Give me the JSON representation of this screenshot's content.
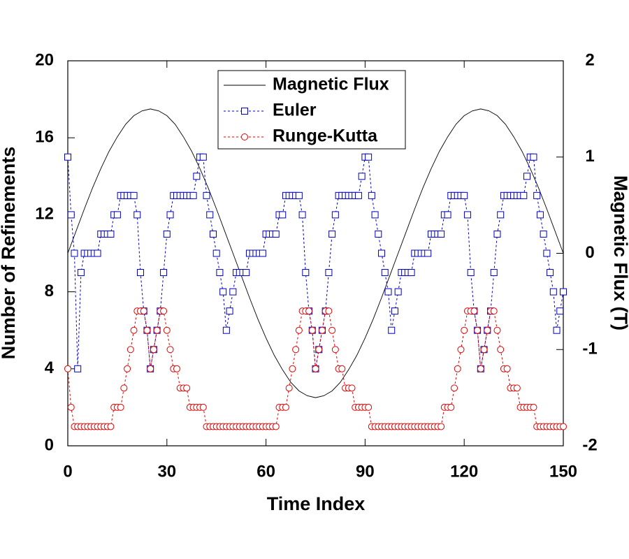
{
  "chart_data": {
    "type": "line",
    "xlabel": "Time Index",
    "ylabel": "Number of Refinements",
    "y2label": "Magnetic Flux (T)",
    "xlim": [
      0,
      150
    ],
    "xticks": [
      0,
      30,
      60,
      90,
      120,
      150
    ],
    "ylim": [
      0,
      20
    ],
    "yticks": [
      0,
      4,
      8,
      12,
      16,
      20
    ],
    "y2lim": [
      -2,
      2
    ],
    "y2ticks": [
      -2,
      -1,
      0,
      1,
      2
    ],
    "legend": "upper center",
    "grid": false,
    "x": [
      0,
      1,
      2,
      3,
      4,
      5,
      6,
      7,
      8,
      9,
      10,
      11,
      12,
      13,
      14,
      15,
      16,
      17,
      18,
      19,
      20,
      21,
      22,
      23,
      24,
      25,
      26,
      27,
      28,
      29,
      30,
      31,
      32,
      33,
      34,
      35,
      36,
      37,
      38,
      39,
      40,
      41,
      42,
      43,
      44,
      45,
      46,
      47,
      48,
      49,
      50,
      51,
      52,
      53,
      54,
      55,
      56,
      57,
      58,
      59,
      60,
      61,
      62,
      63,
      64,
      65,
      66,
      67,
      68,
      69,
      70,
      71,
      72,
      73,
      74,
      75,
      76,
      77,
      78,
      79,
      80,
      81,
      82,
      83,
      84,
      85,
      86,
      87,
      88,
      89,
      90,
      91,
      92,
      93,
      94,
      95,
      96,
      97,
      98,
      99,
      100,
      101,
      102,
      103,
      104,
      105,
      106,
      107,
      108,
      109,
      110,
      111,
      112,
      113,
      114,
      115,
      116,
      117,
      118,
      119,
      120,
      121,
      122,
      123,
      124,
      125,
      126,
      127,
      128,
      129,
      130,
      131,
      132,
      133,
      134,
      135,
      136,
      137,
      138,
      139,
      140,
      141,
      142,
      143,
      144,
      145,
      146,
      147,
      148,
      149,
      150
    ],
    "series": [
      {
        "name": "Magnetic Flux",
        "color": "#000000",
        "axis": "y2",
        "marker": "none",
        "linestyle": "solid",
        "x": [
          0,
          2.5,
          5,
          7.5,
          10,
          12.5,
          15,
          17.5,
          20,
          22.5,
          25,
          27.5,
          30,
          32.5,
          35,
          37.5,
          40,
          42.5,
          45,
          47.5,
          50,
          52.5,
          55,
          57.5,
          60,
          62.5,
          65,
          67.5,
          70,
          72.5,
          75,
          77.5,
          80,
          82.5,
          85,
          87.5,
          90,
          92.5,
          95,
          97.5,
          100,
          102.5,
          105,
          107.5,
          110,
          112.5,
          115,
          117.5,
          120,
          122.5,
          125,
          127.5,
          130,
          132.5,
          135,
          137.5,
          140,
          142.5,
          145,
          147.5,
          150
        ],
        "values": [
          0,
          0.23,
          0.46,
          0.68,
          0.88,
          1.06,
          1.21,
          1.34,
          1.43,
          1.48,
          1.5,
          1.48,
          1.43,
          1.34,
          1.21,
          1.06,
          0.88,
          0.68,
          0.46,
          0.23,
          0,
          -0.23,
          -0.46,
          -0.68,
          -0.88,
          -1.06,
          -1.21,
          -1.34,
          -1.43,
          -1.48,
          -1.5,
          -1.48,
          -1.43,
          -1.34,
          -1.21,
          -1.06,
          -0.88,
          -0.68,
          -0.46,
          -0.23,
          0,
          0.23,
          0.46,
          0.68,
          0.88,
          1.06,
          1.21,
          1.34,
          1.43,
          1.48,
          1.5,
          1.48,
          1.43,
          1.34,
          1.21,
          1.06,
          0.88,
          0.68,
          0.46,
          0.23,
          0
        ]
      },
      {
        "name": "Euler",
        "color": "#0000c0",
        "marker": "square",
        "linestyle": "dotted",
        "values": [
          15,
          12,
          10,
          4,
          9,
          10,
          10,
          10,
          10,
          10,
          11,
          11,
          11,
          11,
          12,
          12,
          13,
          13,
          13,
          13,
          13,
          12,
          9,
          7,
          6,
          4,
          5,
          6,
          7,
          9,
          11,
          12,
          13,
          13,
          13,
          13,
          13,
          13,
          13,
          14,
          15,
          15,
          13,
          12,
          11,
          10,
          9,
          8,
          6,
          7,
          8,
          9,
          9,
          9,
          9,
          10,
          10,
          10,
          10,
          10,
          11,
          11,
          11,
          11,
          12,
          12,
          13,
          13,
          13,
          13,
          13,
          12,
          9,
          7,
          6,
          4,
          5,
          6,
          7,
          9,
          11,
          12,
          13,
          13,
          13,
          13,
          13,
          13,
          13,
          14,
          15,
          15,
          13,
          12,
          11,
          10,
          9,
          8,
          6,
          7,
          8,
          9,
          9,
          9,
          9,
          10,
          10,
          10,
          10,
          10,
          11,
          11,
          11,
          11,
          12,
          12,
          13,
          13,
          13,
          13,
          13,
          12,
          9,
          7,
          6,
          4,
          5,
          6,
          7,
          9,
          11,
          12,
          13,
          13,
          13,
          13,
          13,
          13,
          13,
          14,
          15,
          15,
          13,
          12,
          11,
          10,
          9,
          8,
          6,
          7,
          8
        ]
      },
      {
        "name": "Runge-Kutta",
        "color": "#e00000",
        "marker": "circle",
        "linestyle": "dotted",
        "values": [
          4,
          2,
          1,
          1,
          1,
          1,
          1,
          1,
          1,
          1,
          1,
          1,
          1,
          1,
          2,
          2,
          2,
          3,
          4,
          5,
          6,
          7,
          7,
          7,
          6,
          4,
          5,
          6,
          7,
          7,
          6,
          5,
          4,
          4,
          3,
          3,
          3,
          2,
          2,
          2,
          2,
          2,
          1,
          1,
          1,
          1,
          1,
          1,
          1,
          1,
          1,
          1,
          1,
          1,
          1,
          1,
          1,
          1,
          1,
          1,
          1,
          1,
          1,
          1,
          2,
          2,
          2,
          3,
          4,
          5,
          6,
          7,
          7,
          7,
          6,
          4,
          5,
          6,
          7,
          7,
          6,
          5,
          4,
          4,
          3,
          3,
          3,
          2,
          2,
          2,
          2,
          2,
          1,
          1,
          1,
          1,
          1,
          1,
          1,
          1,
          1,
          1,
          1,
          1,
          1,
          1,
          1,
          1,
          1,
          1,
          1,
          1,
          1,
          1,
          2,
          2,
          2,
          3,
          4,
          5,
          6,
          7,
          7,
          7,
          6,
          4,
          5,
          6,
          7,
          7,
          6,
          5,
          4,
          4,
          3,
          3,
          3,
          2,
          2,
          2,
          2,
          2,
          1,
          1,
          1,
          1,
          1,
          1,
          1,
          1,
          1
        ]
      }
    ]
  }
}
